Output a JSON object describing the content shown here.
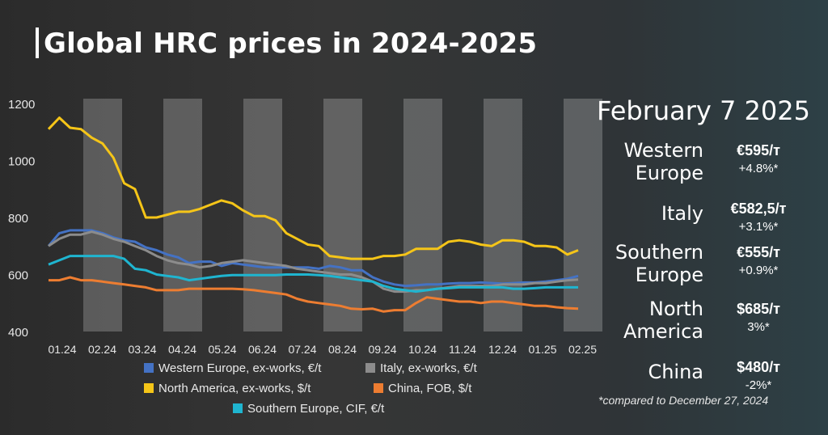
{
  "title": "Global HRC prices in 2024-2025",
  "panel": {
    "date": "February 7  2025",
    "footnote": "*compared to December 27, 2024",
    "rows": [
      {
        "name1": "Western",
        "name2": "Europe",
        "price": "€595/т",
        "change": "+4.8%*"
      },
      {
        "name1": "Italy",
        "name2": "",
        "price": "€582,5/т",
        "change": "+3.1%*"
      },
      {
        "name1": "Southern",
        "name2": "Europe",
        "price": "€555/т",
        "change": "+0.9%*"
      },
      {
        "name1": "North",
        "name2": "America",
        "price": "$685/т",
        "change": "3%*"
      },
      {
        "name1": "China",
        "name2": "",
        "price": "$480/т",
        "change": "-2%*"
      }
    ]
  },
  "colors": {
    "western": "#4472c4",
    "italy": "#8c8c8c",
    "north_america": "#f5c518",
    "china": "#ed7d31",
    "southern": "#1fb5d0"
  },
  "chart_data": {
    "type": "line",
    "ylim": [
      400,
      1200
    ],
    "yticks": [
      400,
      600,
      800,
      1000,
      1200
    ],
    "xticks": [
      "01.24",
      "02.24",
      "03.24",
      "04.24",
      "05.24",
      "06.24",
      "07.24",
      "08.24",
      "09.24",
      "10.24",
      "11.24",
      "12.24",
      "01.25",
      "02.25"
    ],
    "grid": false,
    "shaded_bands": true,
    "legend_placement": "bottom-center",
    "series": [
      {
        "name": "Western Europe, ex-works, €/t",
        "color": "#4472c4",
        "values": [
          700,
          745,
          755,
          755,
          755,
          745,
          730,
          720,
          715,
          695,
          685,
          670,
          660,
          640,
          645,
          645,
          630,
          640,
          635,
          630,
          625,
          625,
          625,
          625,
          625,
          620,
          630,
          625,
          615,
          615,
          590,
          575,
          565,
          560,
          562,
          565,
          565,
          568,
          570,
          570,
          572,
          570,
          568,
          570,
          572,
          572,
          575,
          580,
          585,
          595
        ]
      },
      {
        "name": "Italy, ex-works, €/t",
        "color": "#8c8c8c",
        "values": [
          700,
          725,
          740,
          740,
          750,
          740,
          725,
          715,
          700,
          685,
          665,
          650,
          640,
          635,
          625,
          630,
          640,
          645,
          650,
          645,
          640,
          635,
          630,
          620,
          615,
          610,
          605,
          600,
          600,
          590,
          575,
          550,
          540,
          540,
          545,
          545,
          550,
          555,
          560,
          560,
          560,
          560,
          565,
          565,
          565,
          570,
          570,
          575,
          580,
          582.5
        ]
      },
      {
        "name": "North America, ex-works, $/t",
        "color": "#f5c518",
        "values": [
          1110,
          1150,
          1115,
          1110,
          1080,
          1060,
          1010,
          920,
          900,
          800,
          800,
          810,
          820,
          820,
          830,
          845,
          860,
          850,
          825,
          805,
          805,
          790,
          745,
          725,
          705,
          700,
          665,
          660,
          655,
          655,
          655,
          665,
          665,
          670,
          690,
          690,
          690,
          715,
          720,
          715,
          705,
          700,
          720,
          720,
          715,
          700,
          700,
          695,
          670,
          685
        ]
      },
      {
        "name": "China, FOB, $/t",
        "color": "#ed7d31",
        "values": [
          580,
          580,
          590,
          580,
          580,
          575,
          570,
          565,
          560,
          555,
          545,
          545,
          545,
          550,
          550,
          550,
          550,
          550,
          548,
          545,
          540,
          535,
          530,
          515,
          505,
          500,
          495,
          490,
          480,
          478,
          480,
          470,
          475,
          475,
          500,
          520,
          515,
          510,
          505,
          505,
          500,
          505,
          505,
          500,
          495,
          490,
          490,
          485,
          482,
          480
        ]
      },
      {
        "name": "Southern Europe, CIF, €/t",
        "color": "#1fb5d0",
        "values": [
          635,
          650,
          665,
          665,
          665,
          665,
          665,
          655,
          620,
          615,
          600,
          595,
          590,
          580,
          585,
          590,
          595,
          598,
          598,
          598,
          598,
          598,
          600,
          600,
          600,
          598,
          595,
          590,
          585,
          580,
          575,
          560,
          550,
          545,
          540,
          545,
          550,
          552,
          555,
          555,
          555,
          555,
          555,
          550,
          550,
          552,
          555,
          555,
          555,
          555
        ]
      }
    ]
  }
}
